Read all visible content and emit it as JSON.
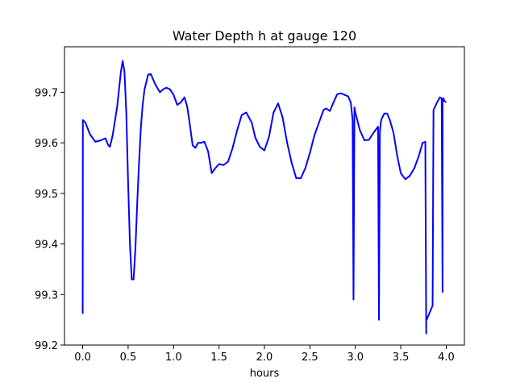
{
  "chart_data": {
    "type": "line",
    "title": "Water Depth h at gauge 120",
    "xlabel": "hours",
    "ylabel": "",
    "xlim": [
      -0.2,
      4.2
    ],
    "ylim": [
      99.2,
      99.79
    ],
    "xticks": [
      0.0,
      0.5,
      1.0,
      1.5,
      2.0,
      2.5,
      3.0,
      3.5,
      4.0
    ],
    "xtick_labels": [
      "0.0",
      "0.5",
      "1.0",
      "1.5",
      "2.0",
      "2.5",
      "3.0",
      "3.5",
      "4.0"
    ],
    "yticks": [
      99.2,
      99.3,
      99.4,
      99.5,
      99.6,
      99.7
    ],
    "ytick_labels": [
      "99.2",
      "99.3",
      "99.4",
      "99.5",
      "99.6",
      "99.7"
    ],
    "grid": false,
    "series": [
      {
        "color": "#0000ff",
        "x": [
          0.0,
          0.001,
          0.002,
          0.03,
          0.08,
          0.14,
          0.2,
          0.25,
          0.28,
          0.3,
          0.33,
          0.38,
          0.42,
          0.44,
          0.46,
          0.48,
          0.5,
          0.52,
          0.54,
          0.56,
          0.58,
          0.6,
          0.62,
          0.64,
          0.66,
          0.68,
          0.7,
          0.72,
          0.75,
          0.8,
          0.85,
          0.88,
          0.92,
          0.96,
          1.0,
          1.04,
          1.08,
          1.12,
          1.15,
          1.18,
          1.21,
          1.24,
          1.27,
          1.3,
          1.34,
          1.38,
          1.42,
          1.46,
          1.5,
          1.55,
          1.6,
          1.65,
          1.7,
          1.75,
          1.8,
          1.86,
          1.9,
          1.95,
          2.0,
          2.05,
          2.1,
          2.15,
          2.2,
          2.25,
          2.3,
          2.35,
          2.4,
          2.45,
          2.5,
          2.55,
          2.6,
          2.65,
          2.68,
          2.72,
          2.76,
          2.8,
          2.84,
          2.88,
          2.92,
          2.95,
          2.97,
          2.98,
          2.99,
          3.0,
          3.05,
          3.1,
          3.15,
          3.2,
          3.25,
          3.26,
          3.27,
          3.28,
          3.29,
          3.32,
          3.35,
          3.38,
          3.42,
          3.46,
          3.5,
          3.55,
          3.6,
          3.65,
          3.7,
          3.74,
          3.77,
          3.78,
          3.78,
          3.85,
          3.86,
          3.86,
          3.9,
          3.93,
          3.95,
          3.96,
          3.96,
          3.97,
          3.98,
          4.0
        ],
        "values": [
          99.262,
          99.4,
          99.645,
          99.64,
          99.617,
          99.602,
          99.605,
          99.609,
          99.596,
          99.592,
          99.615,
          99.672,
          99.74,
          99.762,
          99.74,
          99.66,
          99.52,
          99.4,
          99.33,
          99.33,
          99.39,
          99.48,
          99.56,
          99.63,
          99.675,
          99.705,
          99.72,
          99.735,
          99.736,
          99.715,
          99.7,
          99.705,
          99.709,
          99.706,
          99.695,
          99.675,
          99.68,
          99.69,
          99.672,
          99.635,
          99.595,
          99.59,
          99.6,
          99.6,
          99.602,
          99.583,
          99.54,
          99.55,
          99.558,
          99.556,
          99.563,
          99.59,
          99.625,
          99.655,
          99.66,
          99.64,
          99.61,
          99.592,
          99.585,
          99.612,
          99.66,
          99.678,
          99.65,
          99.6,
          99.56,
          99.53,
          99.53,
          99.55,
          99.58,
          99.615,
          99.64,
          99.665,
          99.668,
          99.663,
          99.68,
          99.696,
          99.698,
          99.695,
          99.692,
          99.68,
          99.645,
          99.29,
          99.67,
          99.66,
          99.625,
          99.605,
          99.606,
          99.62,
          99.632,
          99.25,
          99.62,
          99.64,
          99.648,
          99.658,
          99.658,
          99.645,
          99.62,
          99.575,
          99.54,
          99.528,
          99.535,
          99.55,
          99.575,
          99.6,
          99.602,
          99.223,
          99.248,
          99.278,
          99.665,
          99.665,
          99.68,
          99.69,
          99.688,
          99.305,
          99.682,
          99.688,
          99.683,
          99.68
        ]
      }
    ]
  }
}
